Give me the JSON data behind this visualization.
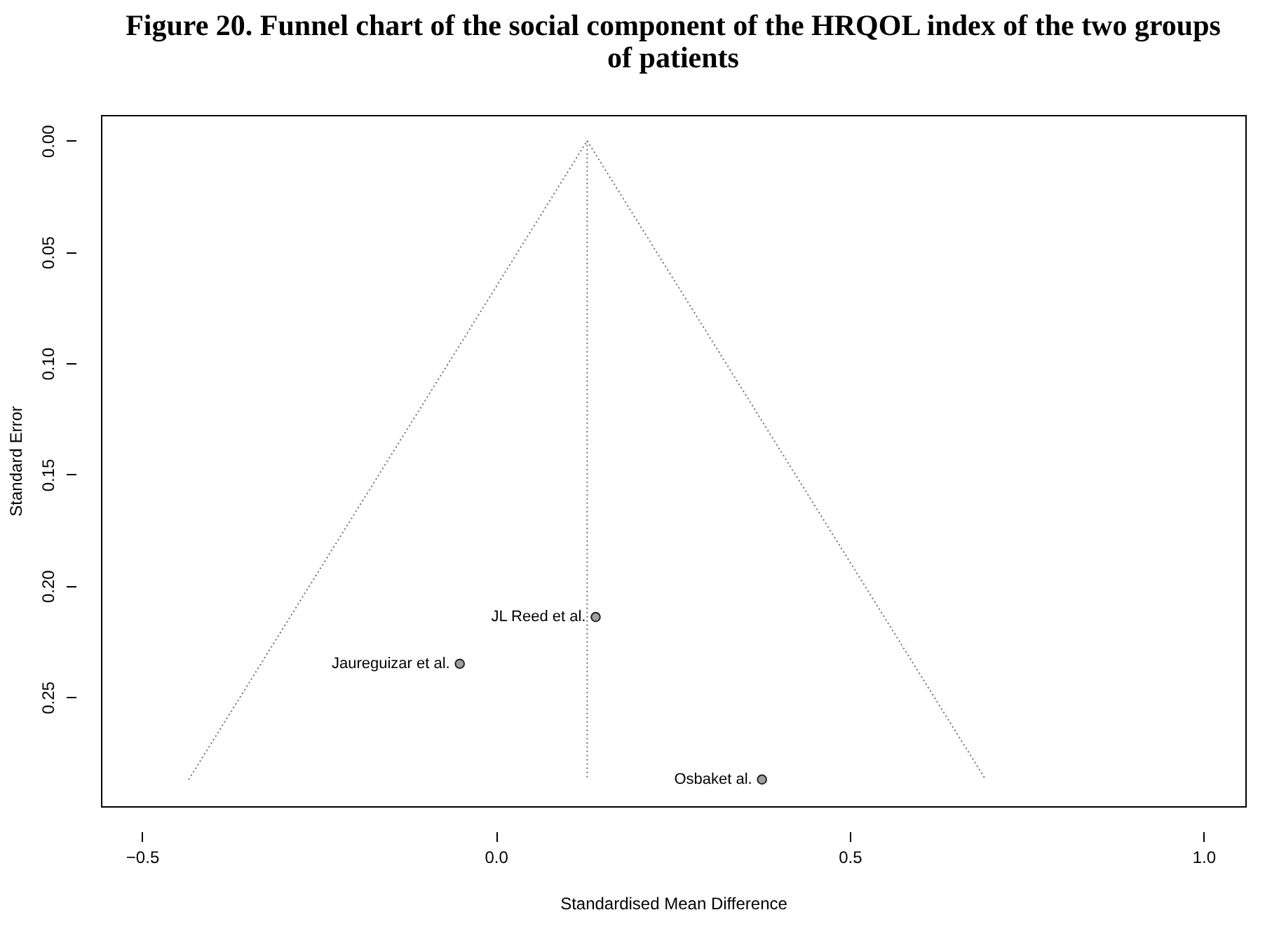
{
  "chart_data": {
    "type": "scatter",
    "title": [
      "Figure 20. Funnel chart of the social component of the HRQOL index of the two groups",
      "of patients"
    ],
    "xlabel": "Standardised Mean Difference",
    "ylabel": "Standard Error",
    "xlim": [
      -0.558,
      1.059
    ],
    "ylim": [
      0.299,
      -0.0116
    ],
    "xticks": [
      -0.5,
      {
        "value": 0,
        "label": "0.0"
      },
      0.5,
      {
        "value": 1,
        "label": "1.0"
      }
    ],
    "yticks": [
      {
        "value": 0,
        "label": "0.00"
      },
      0.05,
      {
        "value": 0.1,
        "label": "0.10"
      },
      0.15,
      {
        "value": 0.2,
        "label": "0.20"
      },
      0.25
    ],
    "grid": false,
    "series": [
      {
        "marker": "circle",
        "color": "#a0a0a0",
        "x": [
          0.141,
          -0.051,
          0.376
        ],
        "values": [
          0.214,
          0.235,
          0.287
        ]
      },
      {
        "type": "line",
        "line_style": "dotted",
        "color": "#707070",
        "x": [
          -0.434,
          0.129,
          0.692
        ],
        "values": [
          0.287,
          0,
          0.287
        ]
      },
      {
        "type": "line",
        "line_style": "dotted",
        "color": "#707070",
        "x": [
          0.129,
          0.129
        ],
        "values": [
          0,
          0.287
        ]
      }
    ],
    "annotations": [
      {
        "text": "JL Reed et al.",
        "x": 0.141,
        "y": 0.214
      },
      {
        "text": "Jaureguizar et al.",
        "x": -0.051,
        "y": 0.235
      },
      {
        "text": "Osbaket al.",
        "x": 0.376,
        "y": 0.287
      }
    ]
  }
}
